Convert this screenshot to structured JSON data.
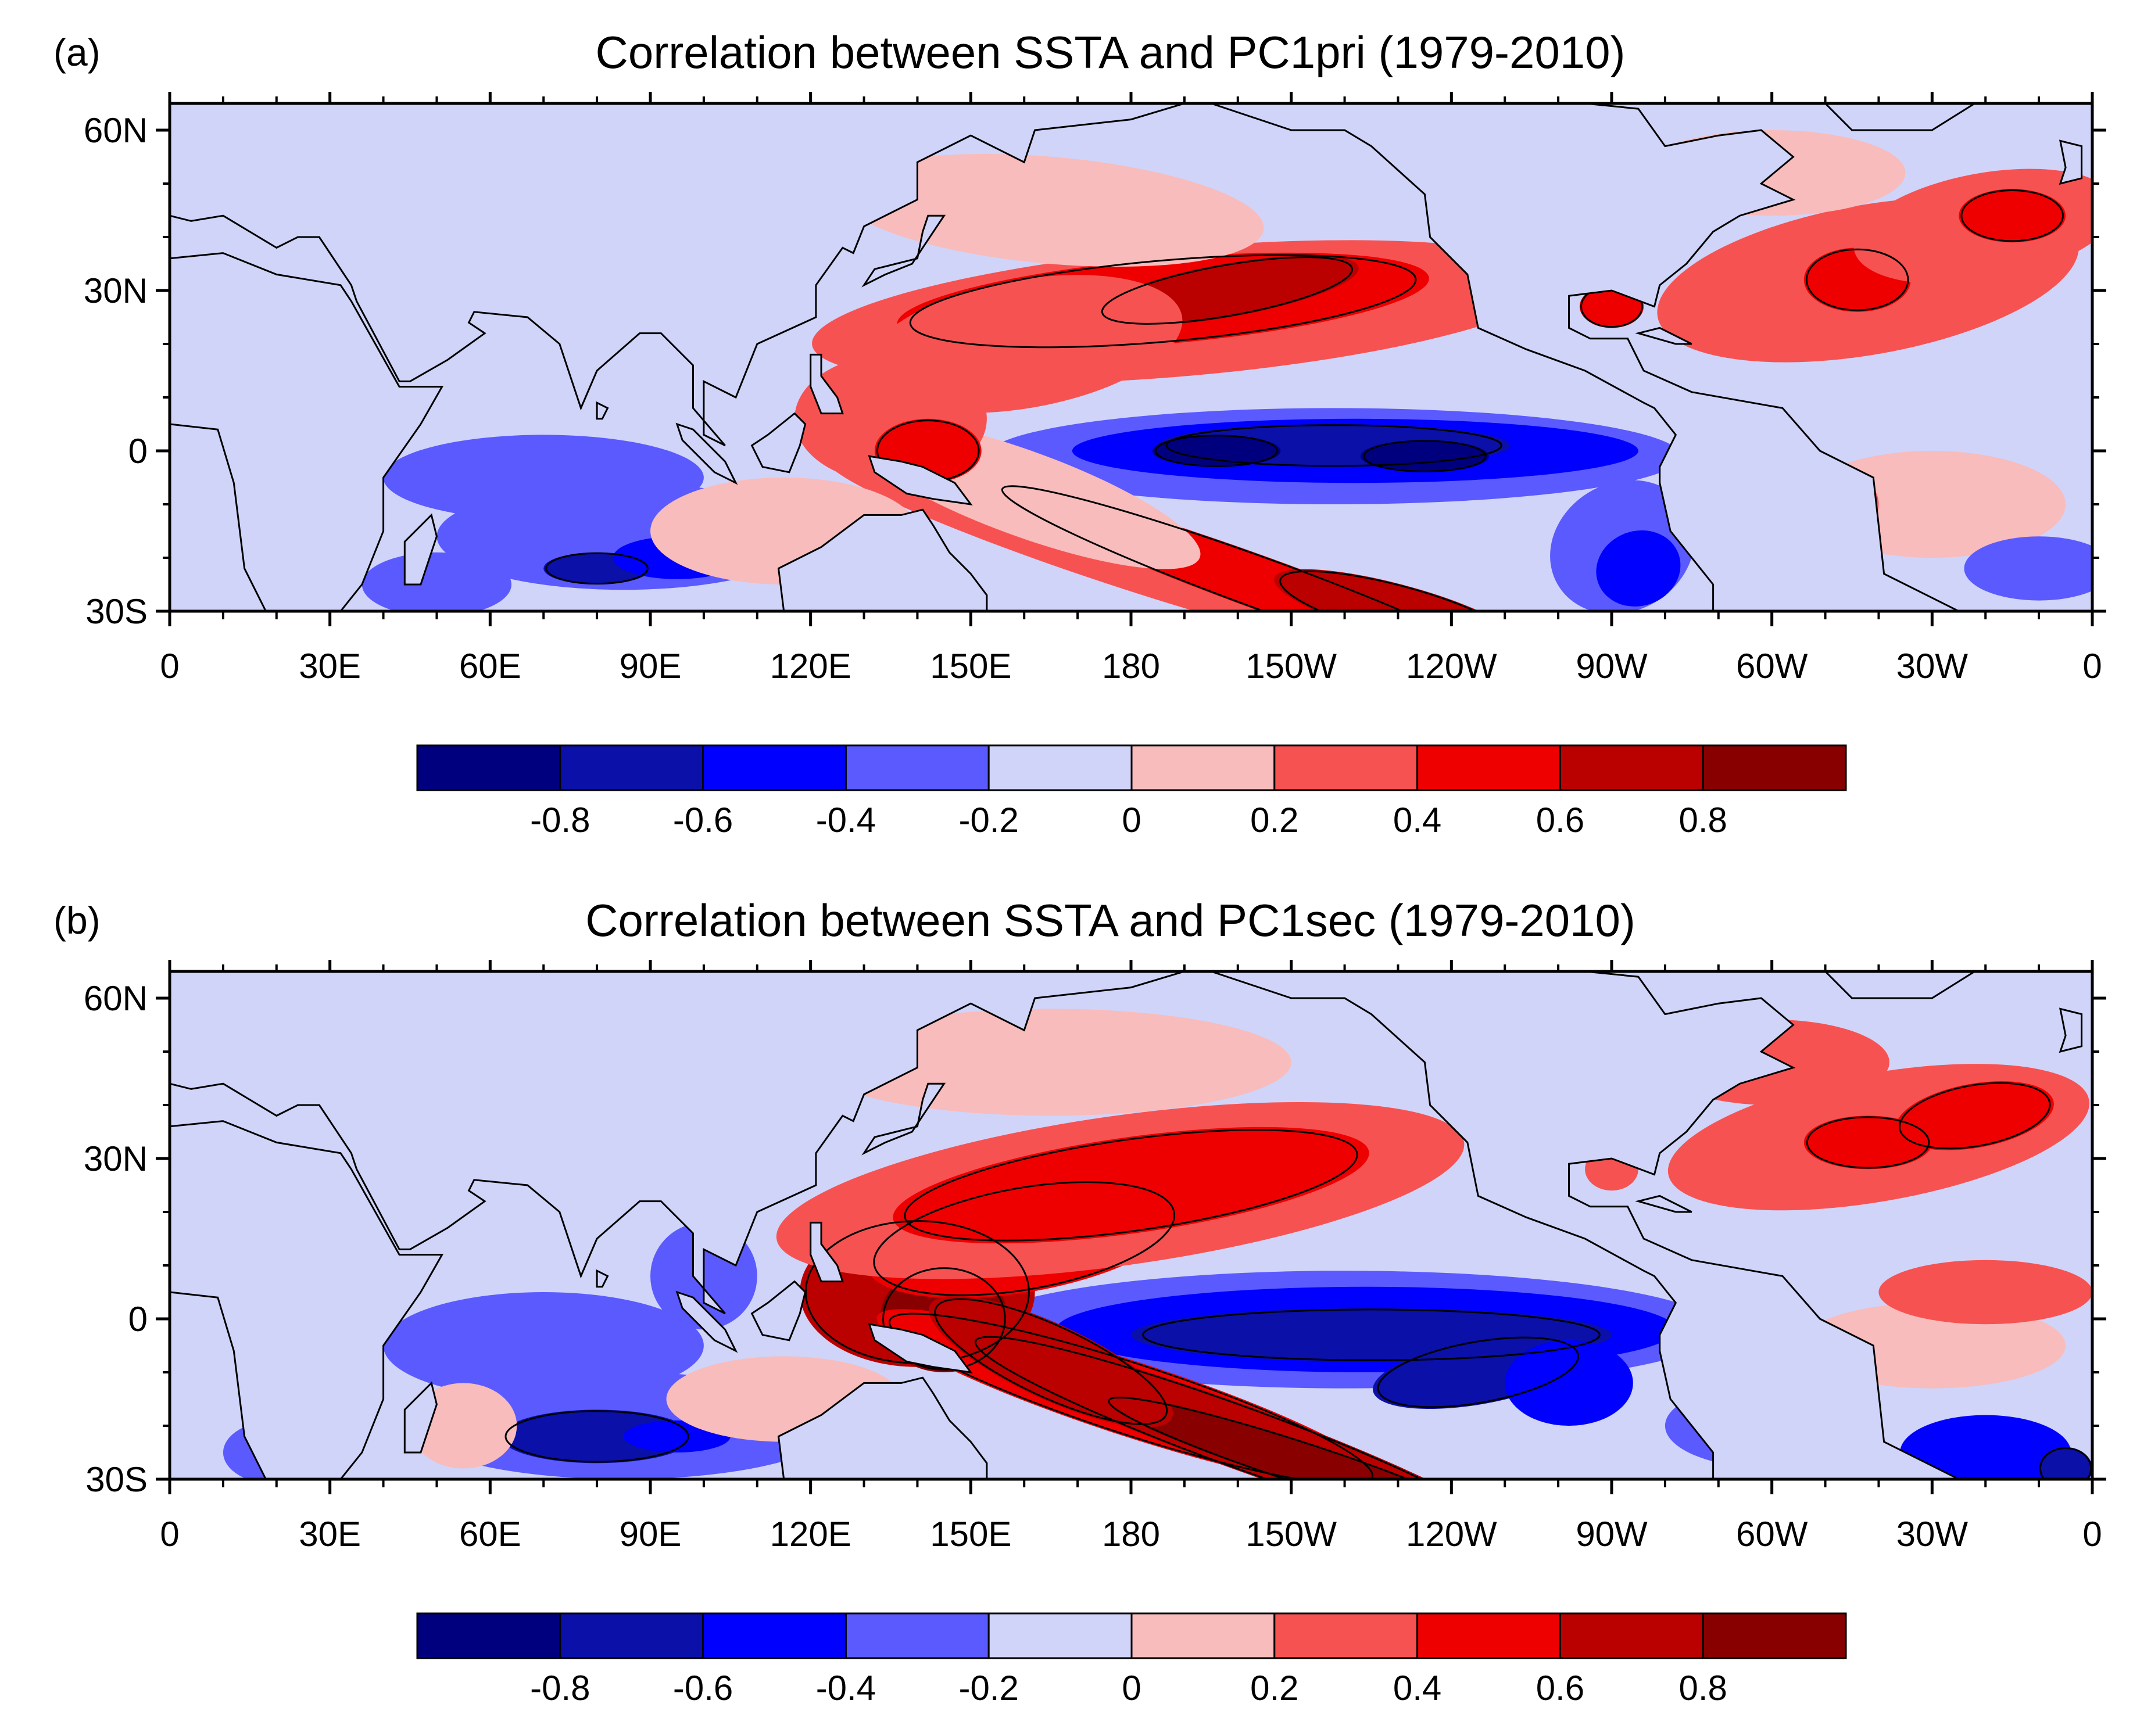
{
  "chart_data": [
    {
      "type": "heatmap",
      "panel_label": "(a)",
      "title": "Correlation between SSTA and PC1pri (1979-2010)",
      "projection": "cylindrical equidistant, Pacific-centered (0 to 0 via 180)",
      "lon_ticks": [
        "0",
        "30E",
        "60E",
        "90E",
        "120E",
        "150E",
        "180",
        "150W",
        "120W",
        "90W",
        "60W",
        "30W",
        "0"
      ],
      "lat_ticks": [
        "60N",
        "30N",
        "0",
        "30S"
      ],
      "lon_range": [
        0,
        360
      ],
      "lat_range": [
        -30,
        65
      ],
      "colorbar": {
        "levels": [
          "-0.8",
          "-0.6",
          "-0.4",
          "-0.2",
          "0",
          "0.2",
          "0.4",
          "0.6",
          "0.8"
        ],
        "colors": [
          "#00007f",
          "#0a10a8",
          "#0000ff",
          "#5a5aff",
          "#d0d4f8",
          "#f8bcbc",
          "#f75252",
          "#ef0000",
          "#bb0000",
          "#880000"
        ]
      },
      "features": [
        {
          "name": "central-eastern equatorial Pacific",
          "sign": "negative",
          "peak": -0.7
        },
        {
          "name": "North Pacific subtropical band",
          "sign": "positive",
          "peak": 0.65
        },
        {
          "name": "South Pacific diagonal band",
          "sign": "positive",
          "peak": 0.65
        },
        {
          "name": "North Atlantic",
          "sign": "positive",
          "peak": 0.65
        },
        {
          "name": "south Indian Ocean",
          "sign": "negative",
          "peak": -0.6
        },
        {
          "name": "western Pacific warm pool",
          "sign": "positive",
          "peak": 0.6
        }
      ]
    },
    {
      "type": "heatmap",
      "panel_label": "(b)",
      "title": "Correlation between SSTA and PC1sec (1979-2010)",
      "projection": "cylindrical equidistant, Pacific-centered (0 to 0 via 180)",
      "lon_ticks": [
        "0",
        "30E",
        "60E",
        "90E",
        "120E",
        "150E",
        "180",
        "150W",
        "120W",
        "90W",
        "60W",
        "30W",
        "0"
      ],
      "lat_ticks": [
        "60N",
        "30N",
        "0",
        "30S"
      ],
      "lon_range": [
        0,
        360
      ],
      "lat_range": [
        -30,
        65
      ],
      "colorbar": {
        "levels": [
          "-0.8",
          "-0.6",
          "-0.4",
          "-0.2",
          "0",
          "0.2",
          "0.4",
          "0.6",
          "0.8"
        ],
        "colors": [
          "#00007f",
          "#0a10a8",
          "#0000ff",
          "#5a5aff",
          "#d0d4f8",
          "#f8bcbc",
          "#f75252",
          "#ef0000",
          "#bb0000",
          "#880000"
        ]
      },
      "features": [
        {
          "name": "central-eastern equatorial Pacific",
          "sign": "negative",
          "peak": -0.75
        },
        {
          "name": "western Pacific warm pool",
          "sign": "positive",
          "peak": 0.8
        },
        {
          "name": "South Pacific diagonal band",
          "sign": "positive",
          "peak": 0.8
        },
        {
          "name": "North Pacific subtropical band",
          "sign": "positive",
          "peak": 0.6
        },
        {
          "name": "North Atlantic",
          "sign": "positive",
          "peak": 0.6
        },
        {
          "name": "south Indian Ocean",
          "sign": "negative",
          "peak": -0.7
        }
      ]
    }
  ]
}
